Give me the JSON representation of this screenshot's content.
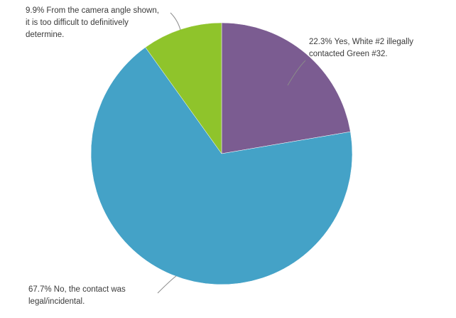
{
  "chart_data": {
    "type": "pie",
    "slices": [
      {
        "value": 22.3,
        "label": "22.3% Yes, White #2 illegally contacted Green #32.",
        "label_lines": [
          "22.3% Yes, White #2 illegally",
          "contacted Green #32."
        ],
        "color": "#7b5c91"
      },
      {
        "value": 67.7,
        "label": "67.7% No, the contact was legal/incidental.",
        "label_lines": [
          "67.7% No, the contact was",
          "legal/incidental."
        ],
        "color": "#44a2c7"
      },
      {
        "value": 9.9,
        "label": "9.9% From the camera angle shown, it is too difficult to definitively determine.",
        "label_lines": [
          "9.9% From the camera angle shown,",
          "it is too difficult to definitively",
          "determine."
        ],
        "color": "#8fc42b"
      }
    ],
    "start": "12 o'clock",
    "direction": "clockwise",
    "legend": "none"
  }
}
